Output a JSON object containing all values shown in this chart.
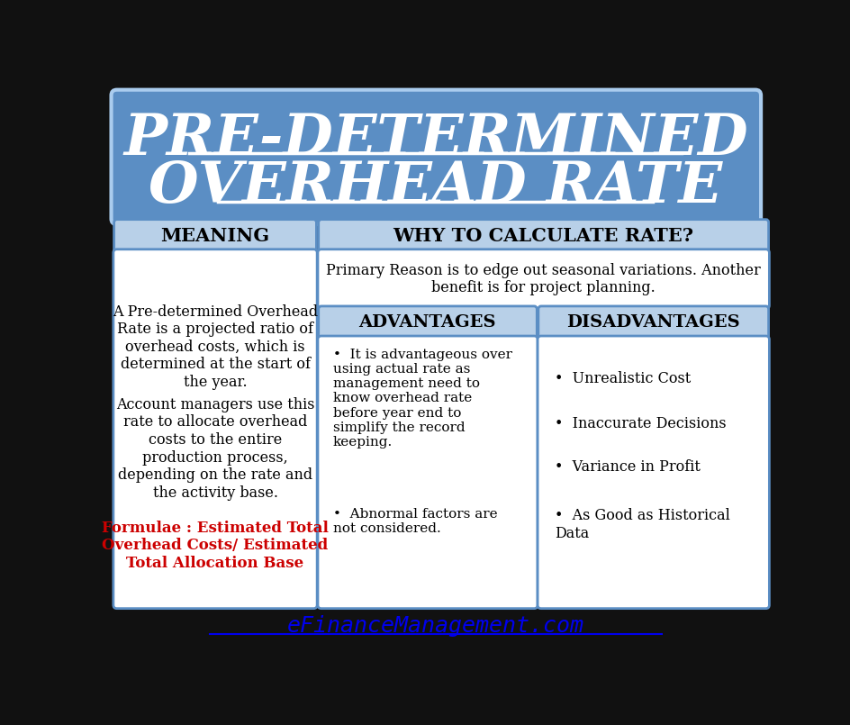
{
  "title_line1": "PRE-DETERMINED",
  "title_line2": "OVERHEAD RATE",
  "bg_color": "#1a1a1a",
  "header_bg": "#5b8ec4",
  "header_border": "#aaccee",
  "section_header_bg": "#b8d0e8",
  "meaning_header": "MEANING",
  "why_header": "WHY TO CALCULATE RATE?",
  "adv_header": "ADVANTAGES",
  "dis_header": "DISADVANTAGES",
  "meaning_text1": "A Pre-determined Overhead\nRate is a projected ratio of\noverhead costs, which is\ndetermined at the start of\nthe year.",
  "meaning_text2": "Account managers use this\nrate to allocate overhead\ncosts to the entire\nproduction process,\ndepending on the rate and\nthe activity base.",
  "formulae_text": "Formulae : Estimated Total\nOverhead Costs/ Estimated\nTotal Allocation Base",
  "formulae_color": "#cc0000",
  "why_text": "Primary Reason is to edge out seasonal variations. Another\nbenefit is for project planning.",
  "adv_point1": "It is advantageous over\nusing actual rate as\nmanagement need to\nknow overhead rate\nbefore year end to\nsimplify the record\nkeeping.",
  "adv_point2": "Abnormal factors are\nnot considered.",
  "dis_points": [
    "Unrealistic Cost",
    "Inaccurate Decisions",
    "Variance in Profit",
    "As Good as Historical\nData"
  ],
  "footer": "eFinanceManagement.com",
  "footer_color": "#0000ee",
  "border_color": "#5b8ec4",
  "outer_bg": "#222222"
}
